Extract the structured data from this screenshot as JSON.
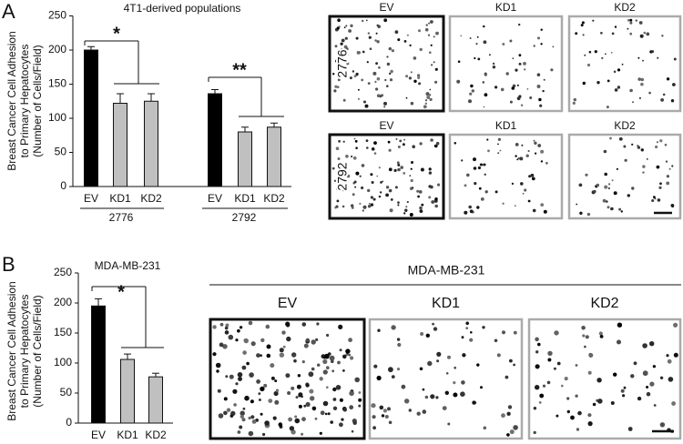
{
  "panel_labels": [
    "A",
    "B"
  ],
  "chart_data": [
    {
      "type": "bar",
      "title": "4T1-derived populations",
      "ylabel": [
        "Breast Cancer Cell Adhesion",
        "to Primary Hepatocytes",
        "(Number of Cells/Field)"
      ],
      "categories": [
        "EV",
        "KD1",
        "KD2",
        "EV",
        "KD1",
        "KD2"
      ],
      "group_labels": [
        "2776",
        "2792"
      ],
      "values": [
        200,
        122,
        125,
        136,
        80,
        87
      ],
      "errors": [
        5,
        14,
        11,
        6,
        7,
        6
      ],
      "colors": [
        "#000000",
        "#c0c0c0",
        "#c0c0c0",
        "#000000",
        "#c0c0c0",
        "#c0c0c0"
      ],
      "ylim": [
        0,
        250
      ],
      "yticks": [
        0,
        50,
        100,
        150,
        200,
        250
      ],
      "annotations": [
        "*",
        "**"
      ]
    },
    {
      "type": "bar",
      "title": "MDA-MB-231",
      "ylabel": [
        "Breast Cancer Cell Adhesion",
        "to Primary Hepatocytes",
        "(Number of Cells/Field)"
      ],
      "categories": [
        "EV",
        "KD1",
        "KD2"
      ],
      "values": [
        195,
        106,
        77
      ],
      "errors": [
        12,
        9,
        6
      ],
      "colors": [
        "#000000",
        "#c0c0c0",
        "#c0c0c0"
      ],
      "ylim": [
        0,
        250
      ],
      "yticks": [
        0,
        50,
        100,
        150,
        200,
        250
      ],
      "annotations": [
        "*"
      ]
    }
  ],
  "micrographs": [
    {
      "columns": [
        "EV",
        "KD1",
        "KD2"
      ],
      "rows": [
        "2776",
        "2792"
      ]
    },
    {
      "title": "MDA-MB-231",
      "columns": [
        "EV",
        "KD1",
        "KD2"
      ]
    }
  ]
}
